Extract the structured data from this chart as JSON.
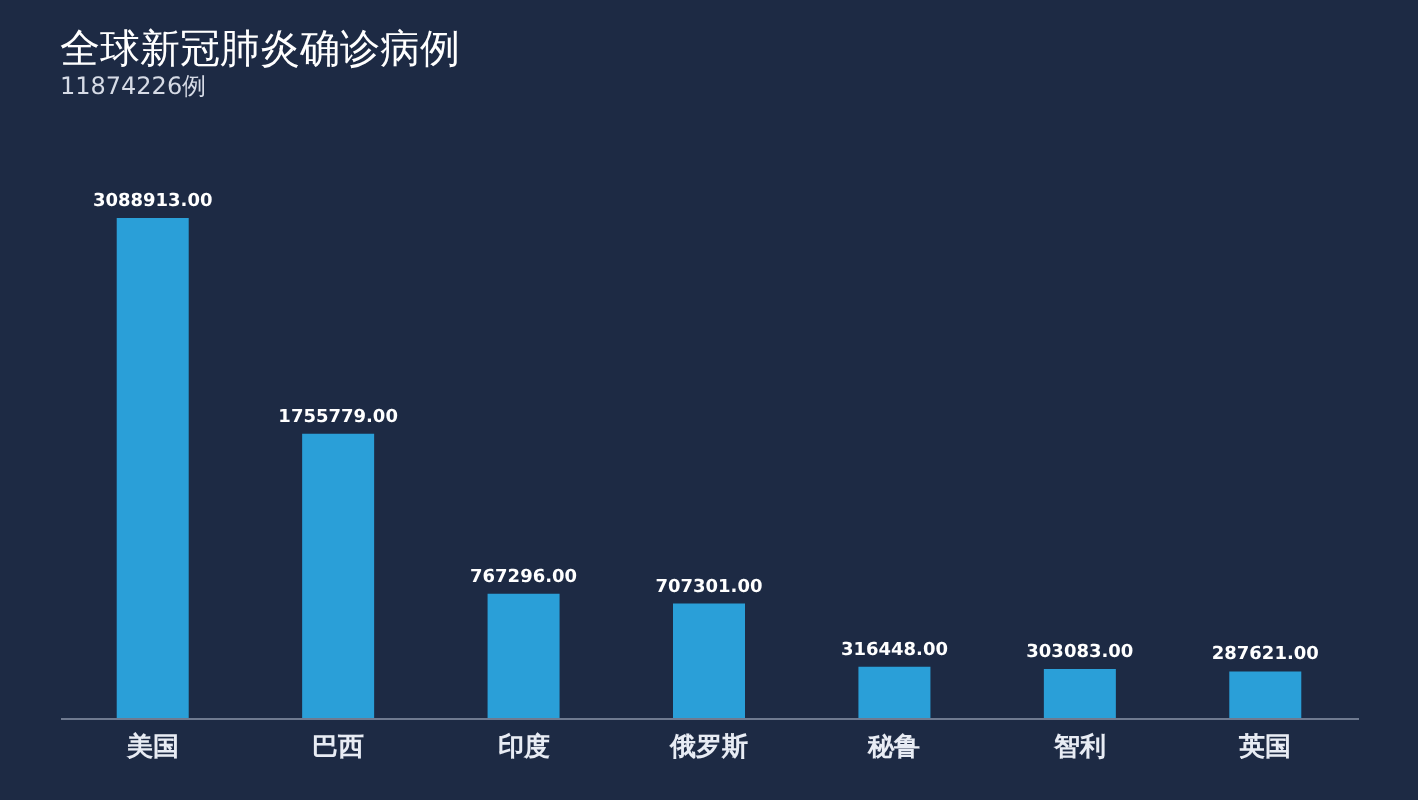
{
  "chart_data": {
    "type": "bar",
    "title": "全球新冠肺炎确诊病例",
    "subtitle": "11874226例",
    "categories": [
      "美国",
      "巴西",
      "印度",
      "俄罗斯",
      "秘鲁",
      "智利",
      "英国"
    ],
    "values": [
      3088913,
      1755779,
      767296,
      707301,
      316448,
      303083,
      287621
    ],
    "value_labels": [
      "3088913.00",
      "1755779.00",
      "767296.00",
      "707301.00",
      "316448.00",
      "303083.00",
      "287621.00"
    ],
    "color": "#2a9fd8",
    "grid": false,
    "tick_labels": "x"
  }
}
